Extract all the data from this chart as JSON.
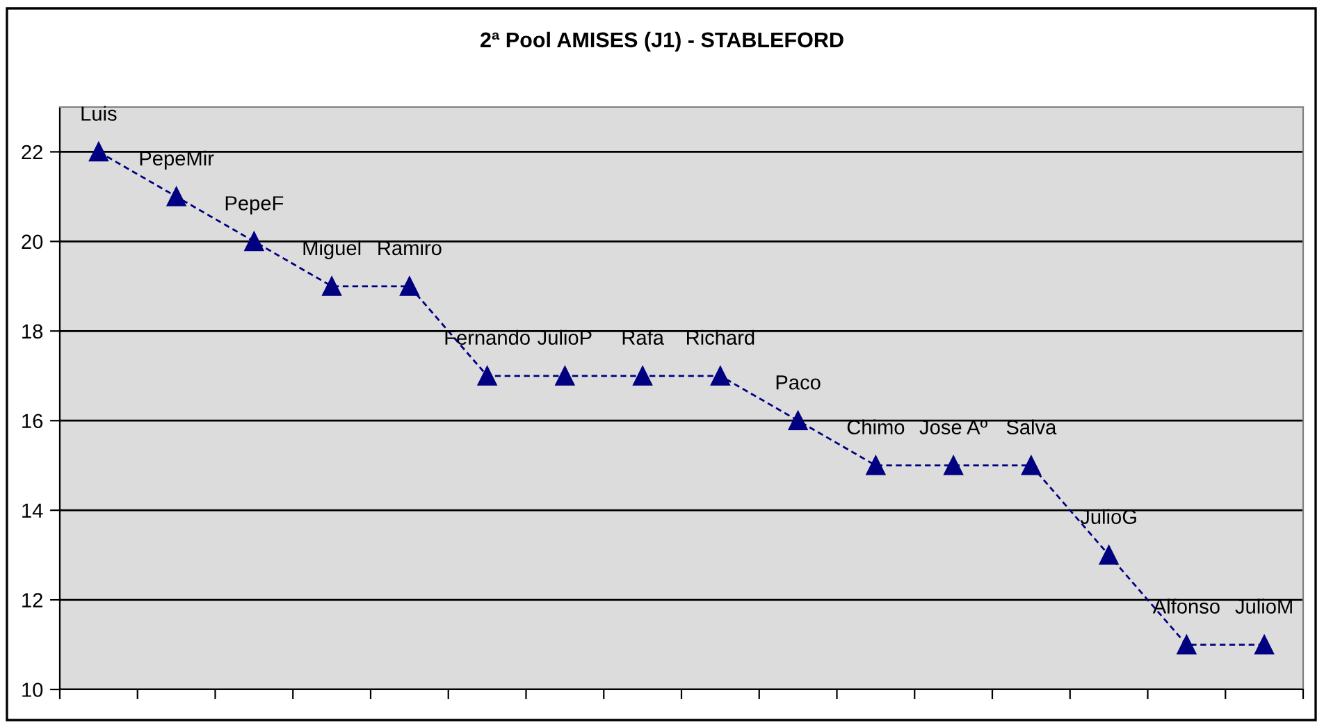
{
  "chart_data": {
    "type": "line",
    "title": "2ª Pool AMISES (J1) - STABLEFORD",
    "categories": [
      null,
      null,
      null,
      null,
      null,
      null,
      null,
      null,
      null,
      null,
      null,
      null,
      null,
      null,
      null,
      null
    ],
    "series": [
      {
        "color": "#000080",
        "values": [
          22,
          21,
          20,
          19,
          19,
          17,
          17,
          17,
          17,
          16,
          15,
          15,
          15,
          13,
          11,
          11
        ],
        "value_labels": [
          "Luis",
          "PepeMir",
          "PepeF",
          "Miguel",
          "Ramiro",
          "Fernando",
          "JulioP",
          "Rafa",
          "Richard",
          "Paco",
          "Chimo",
          "Jose Aº",
          "Salva",
          "JulioG",
          "Alfonso",
          "JulioM"
        ]
      }
    ],
    "ylim": [
      10,
      23
    ],
    "yticks": [
      10,
      12,
      14,
      16,
      18,
      20,
      22
    ],
    "grid": "y",
    "tick_labels": "y",
    "marker": "triangle",
    "line_style": "dashed"
  }
}
